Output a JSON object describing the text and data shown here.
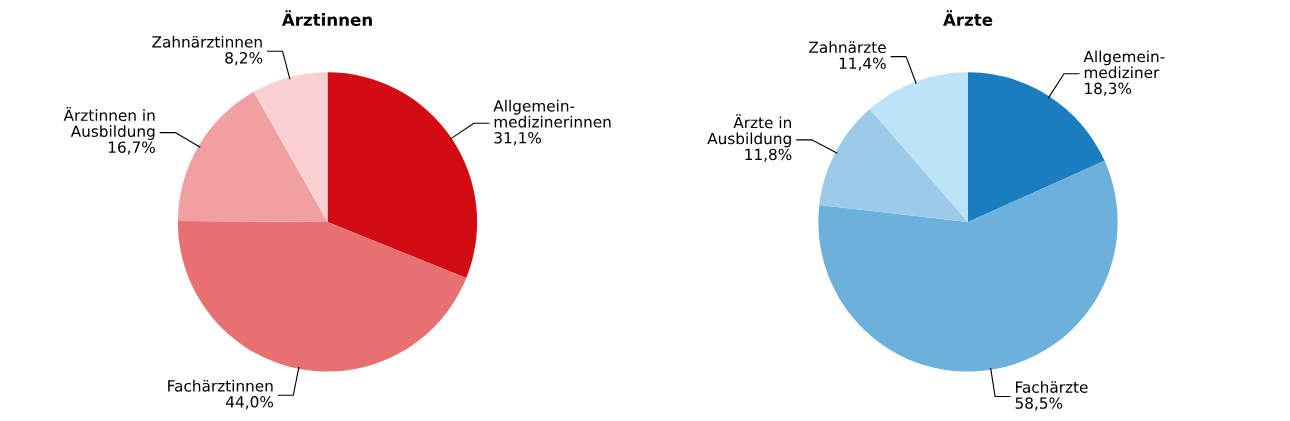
{
  "chart_data": [
    {
      "type": "pie",
      "title": "Ärztinnen",
      "categories": [
        "Allgemein-\nmedizinerinnen",
        "Fachärztinnen",
        "Ärztinnen in\nAusbildung",
        "Zahnärztinnen"
      ],
      "values": [
        31.1,
        44.0,
        16.7,
        8.2
      ],
      "value_labels": [
        "31,1%",
        "44,0%",
        "16,7%",
        "8,2%"
      ],
      "colors": [
        "#d20a11",
        "#e87070",
        "#f0a0a0",
        "#fad0d3"
      ]
    },
    {
      "type": "pie",
      "title": "Ärzte",
      "categories": [
        "Allgemein-\nmediziner",
        "Fachärzte",
        "Ärzte in\nAusbildung",
        "Zahnärzte"
      ],
      "values": [
        18.3,
        58.5,
        11.8,
        11.4
      ],
      "value_labels": [
        "18,3%",
        "58,5%",
        "11,8%",
        "11,4%"
      ],
      "colors": [
        "#1a7dc0",
        "#6cb0dc",
        "#9ccbea",
        "#bde3f7"
      ]
    }
  ]
}
